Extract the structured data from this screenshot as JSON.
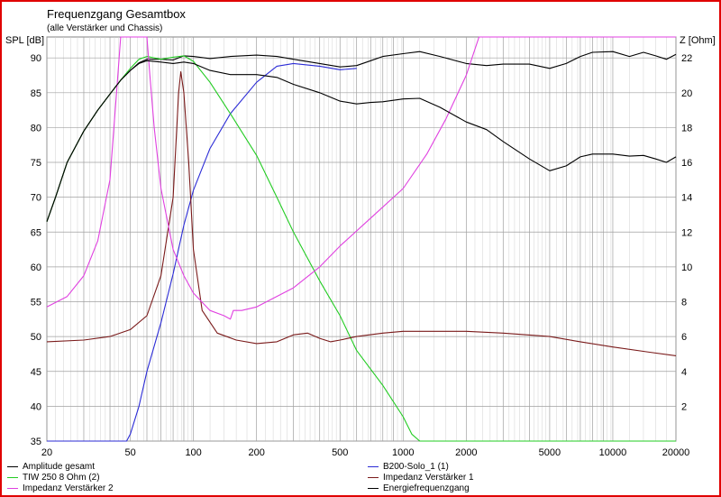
{
  "header": {
    "title": "Frequenzgang Gesamtbox",
    "subtitle": "(alle Verstärker und Chassis)",
    "left_axis_label": "SPL [dB]",
    "right_axis_label": "Z [Ohm]"
  },
  "chart_data": {
    "type": "line",
    "x_scale": "log",
    "xlim": [
      20,
      20000
    ],
    "ylim": [
      35,
      93
    ],
    "y2lim": [
      0,
      23.2
    ],
    "x_ticks": [
      20,
      50,
      100,
      200,
      500,
      1000,
      2000,
      5000,
      10000,
      20000
    ],
    "y_ticks": [
      35,
      40,
      45,
      50,
      55,
      60,
      65,
      70,
      75,
      80,
      85,
      90
    ],
    "y2_ticks": [
      2,
      4,
      6,
      8,
      10,
      12,
      14,
      16,
      18,
      20,
      22
    ],
    "grid": true,
    "legend_position": "bottom",
    "series": [
      {
        "name": "Amplitude gesamt",
        "color": "#000000",
        "axis": "left",
        "points": [
          [
            20,
            66.5
          ],
          [
            22,
            70
          ],
          [
            25,
            75
          ],
          [
            30,
            79.5
          ],
          [
            35,
            82.5
          ],
          [
            40,
            84.8
          ],
          [
            45,
            86.8
          ],
          [
            50,
            88.2
          ],
          [
            55,
            89.3
          ],
          [
            60,
            89.8
          ],
          [
            70,
            89.8
          ],
          [
            80,
            89.7
          ],
          [
            90,
            90.3
          ],
          [
            100,
            90.2
          ],
          [
            120,
            89.9
          ],
          [
            150,
            90.2
          ],
          [
            200,
            90.4
          ],
          [
            250,
            90.2
          ],
          [
            300,
            89.8
          ],
          [
            400,
            89.2
          ],
          [
            500,
            88.7
          ],
          [
            600,
            88.9
          ],
          [
            700,
            89.6
          ],
          [
            800,
            90.2
          ],
          [
            1000,
            90.6
          ],
          [
            1200,
            90.9
          ],
          [
            1500,
            90.2
          ],
          [
            2000,
            89.2
          ],
          [
            2500,
            88.9
          ],
          [
            3000,
            89.1
          ],
          [
            4000,
            89.1
          ],
          [
            5000,
            88.5
          ],
          [
            6000,
            89.2
          ],
          [
            7000,
            90.2
          ],
          [
            8000,
            90.8
          ],
          [
            10000,
            90.9
          ],
          [
            12000,
            90.2
          ],
          [
            14000,
            90.8
          ],
          [
            16000,
            90.3
          ],
          [
            18000,
            89.8
          ],
          [
            20000,
            90.5
          ]
        ]
      },
      {
        "name": "B200-Solo_1 (1)",
        "color": "#2b2bd6",
        "axis": "left",
        "points": [
          [
            20,
            35
          ],
          [
            48,
            35
          ],
          [
            50,
            36
          ],
          [
            55,
            40
          ],
          [
            60,
            45
          ],
          [
            70,
            52
          ],
          [
            80,
            59
          ],
          [
            90,
            66
          ],
          [
            100,
            71
          ],
          [
            120,
            77
          ],
          [
            150,
            82
          ],
          [
            200,
            86.5
          ],
          [
            250,
            88.8
          ],
          [
            300,
            89.2
          ],
          [
            400,
            88.8
          ],
          [
            500,
            88.3
          ],
          [
            600,
            88.5
          ]
        ]
      },
      {
        "name": "TIW 250 8 Ohm (2)",
        "color": "#22cc22",
        "axis": "left",
        "points": [
          [
            20,
            66.5
          ],
          [
            22,
            70
          ],
          [
            25,
            75
          ],
          [
            30,
            79.5
          ],
          [
            35,
            82.5
          ],
          [
            40,
            84.8
          ],
          [
            45,
            86.8
          ],
          [
            50,
            88.5
          ],
          [
            55,
            89.8
          ],
          [
            60,
            90.2
          ],
          [
            70,
            89.8
          ],
          [
            80,
            90.1
          ],
          [
            90,
            90.3
          ],
          [
            100,
            89.5
          ],
          [
            120,
            86.5
          ],
          [
            150,
            82
          ],
          [
            200,
            76
          ],
          [
            250,
            70
          ],
          [
            300,
            65
          ],
          [
            400,
            58
          ],
          [
            500,
            53
          ],
          [
            600,
            48
          ],
          [
            800,
            43
          ],
          [
            1000,
            38.5
          ],
          [
            1100,
            36
          ],
          [
            1200,
            35
          ],
          [
            2000,
            35
          ],
          [
            20000,
            35
          ]
        ]
      },
      {
        "name": "Impedanz Verstärker 1",
        "color": "#7a1a1a",
        "axis": "right",
        "points": [
          [
            20,
            5.7
          ],
          [
            30,
            5.8
          ],
          [
            40,
            6.0
          ],
          [
            50,
            6.4
          ],
          [
            60,
            7.2
          ],
          [
            70,
            9.5
          ],
          [
            80,
            14
          ],
          [
            85,
            20
          ],
          [
            87,
            21.2
          ],
          [
            90,
            20
          ],
          [
            95,
            16
          ],
          [
            100,
            11
          ],
          [
            110,
            7.5
          ],
          [
            130,
            6.2
          ],
          [
            160,
            5.8
          ],
          [
            200,
            5.6
          ],
          [
            250,
            5.7
          ],
          [
            300,
            6.1
          ],
          [
            350,
            6.2
          ],
          [
            400,
            5.9
          ],
          [
            450,
            5.7
          ],
          [
            500,
            5.8
          ],
          [
            600,
            6.0
          ],
          [
            800,
            6.2
          ],
          [
            1000,
            6.3
          ],
          [
            1500,
            6.3
          ],
          [
            2000,
            6.3
          ],
          [
            3000,
            6.2
          ],
          [
            5000,
            6.0
          ],
          [
            7000,
            5.7
          ],
          [
            10000,
            5.4
          ],
          [
            15000,
            5.1
          ],
          [
            20000,
            4.9
          ]
        ]
      },
      {
        "name": "Impedanz Verstärker 2",
        "color": "#e040e0",
        "axis": "right",
        "points": [
          [
            20,
            7.7
          ],
          [
            25,
            8.3
          ],
          [
            30,
            9.5
          ],
          [
            35,
            11.5
          ],
          [
            40,
            15
          ],
          [
            43,
            20
          ],
          [
            45,
            23.2
          ],
          [
            60,
            23.2
          ],
          [
            62,
            21
          ],
          [
            65,
            18
          ],
          [
            70,
            14.5
          ],
          [
            80,
            11
          ],
          [
            90,
            9.5
          ],
          [
            100,
            8.5
          ],
          [
            120,
            7.5
          ],
          [
            140,
            7.2
          ],
          [
            150,
            7.0
          ],
          [
            155,
            7.5
          ],
          [
            170,
            7.5
          ],
          [
            200,
            7.7
          ],
          [
            300,
            8.8
          ],
          [
            400,
            10
          ],
          [
            500,
            11.2
          ],
          [
            700,
            12.8
          ],
          [
            1000,
            14.5
          ],
          [
            1300,
            16.5
          ],
          [
            1600,
            18.5
          ],
          [
            2000,
            21
          ],
          [
            2300,
            23.2
          ],
          [
            20000,
            23.2
          ]
        ]
      },
      {
        "name": "Energiefrequenzgang",
        "color": "#000000",
        "axis": "left",
        "points": [
          [
            20,
            66.5
          ],
          [
            22,
            70
          ],
          [
            25,
            75
          ],
          [
            30,
            79.5
          ],
          [
            35,
            82.5
          ],
          [
            40,
            84.8
          ],
          [
            45,
            86.8
          ],
          [
            50,
            88.2
          ],
          [
            55,
            89.2
          ],
          [
            60,
            89.6
          ],
          [
            70,
            89.4
          ],
          [
            80,
            89.2
          ],
          [
            90,
            89.4
          ],
          [
            100,
            89.2
          ],
          [
            120,
            88.2
          ],
          [
            150,
            87.6
          ],
          [
            200,
            87.6
          ],
          [
            250,
            87.2
          ],
          [
            300,
            86.2
          ],
          [
            400,
            85
          ],
          [
            500,
            83.8
          ],
          [
            600,
            83.4
          ],
          [
            700,
            83.6
          ],
          [
            800,
            83.7
          ],
          [
            1000,
            84.1
          ],
          [
            1200,
            84.2
          ],
          [
            1500,
            82.9
          ],
          [
            2000,
            80.8
          ],
          [
            2500,
            79.7
          ],
          [
            3000,
            78
          ],
          [
            4000,
            75.5
          ],
          [
            5000,
            73.8
          ],
          [
            6000,
            74.5
          ],
          [
            7000,
            75.8
          ],
          [
            8000,
            76.2
          ],
          [
            10000,
            76.2
          ],
          [
            12000,
            75.9
          ],
          [
            14000,
            76
          ],
          [
            16000,
            75.5
          ],
          [
            18000,
            75
          ],
          [
            20000,
            75.8
          ]
        ]
      }
    ]
  }
}
